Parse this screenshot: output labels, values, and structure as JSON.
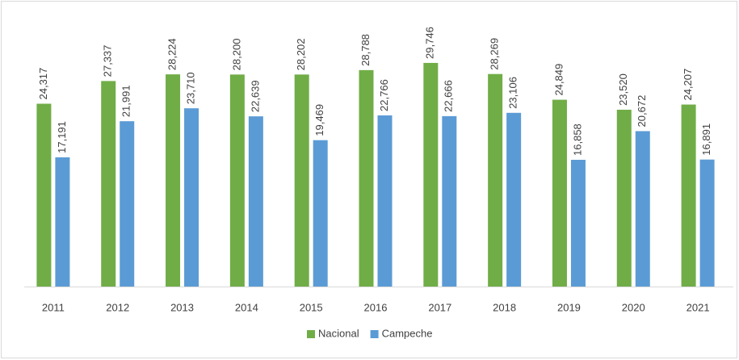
{
  "chart_data": {
    "type": "bar",
    "categories": [
      "2011",
      "2012",
      "2013",
      "2014",
      "2015",
      "2016",
      "2017",
      "2018",
      "2019",
      "2020",
      "2021"
    ],
    "series": [
      {
        "name": "Nacional",
        "color": "#70ad47",
        "values": [
          24317,
          27337,
          28224,
          28200,
          28202,
          28788,
          29746,
          28269,
          24849,
          23520,
          24207
        ],
        "value_labels": [
          "24,317",
          "27,337",
          "28,224",
          "28,200",
          "28,202",
          "28,788",
          "29,746",
          "28,269",
          "24,849",
          "23,520",
          "24,207"
        ]
      },
      {
        "name": "Campeche",
        "color": "#5b9bd5",
        "values": [
          17191,
          21991,
          23710,
          22639,
          19469,
          22766,
          22666,
          23106,
          16858,
          20672,
          16891
        ],
        "value_labels": [
          "17,191",
          "21,991",
          "23,710",
          "22,639",
          "19,469",
          "22,766",
          "22,666",
          "23,106",
          "16,858",
          "20,672",
          "16,891"
        ]
      }
    ],
    "ylim": [
      0,
      35000
    ],
    "legend": "bottom"
  }
}
